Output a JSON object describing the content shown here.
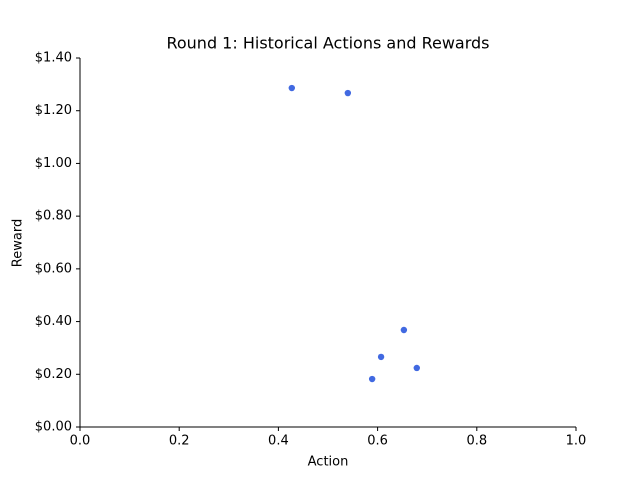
{
  "chart_data": {
    "type": "scatter",
    "title": "Round 1: Historical Actions and Rewards",
    "x_label": "Action",
    "y_label": "Reward",
    "series": [
      {
        "color": "#4169e1",
        "x": [
          0.427,
          0.54,
          0.653,
          0.607,
          0.679,
          0.589
        ],
        "values": [
          1.286,
          1.267,
          0.368,
          0.266,
          0.224,
          0.182
        ]
      }
    ],
    "xlim": [
      0,
      1
    ],
    "xticks": [
      {
        "value": 0,
        "label": "0.0"
      },
      0.2,
      0.4,
      0.6,
      0.8,
      {
        "value": 1,
        "label": "1.0"
      }
    ],
    "ylim": [
      0,
      1.4
    ],
    "yticks": [
      {
        "value": 0,
        "label": "$0.00"
      },
      {
        "value": 0.2,
        "label": "$0.20"
      },
      {
        "value": 0.4,
        "label": "$0.40"
      },
      {
        "value": 0.6,
        "label": "$0.60"
      },
      {
        "value": 0.8,
        "label": "$0.80"
      },
      {
        "value": 1.0,
        "label": "$1.00"
      },
      {
        "value": 1.2,
        "label": "$1.20"
      },
      {
        "value": 1.4,
        "label": "$1.40"
      }
    ]
  }
}
